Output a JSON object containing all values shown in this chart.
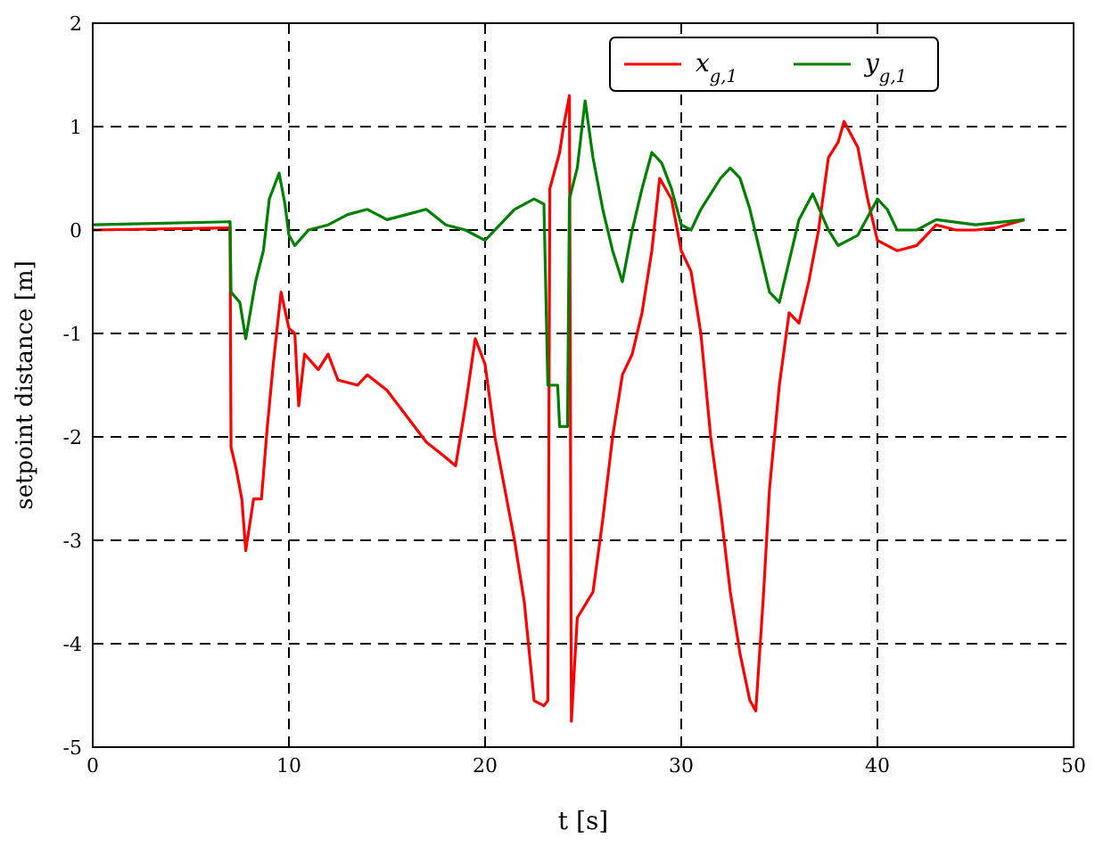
{
  "chart_data": {
    "type": "line",
    "xlabel": "t [s]",
    "ylabel": "setpoint distance [m]",
    "xlim": [
      0,
      50
    ],
    "ylim": [
      -5,
      2
    ],
    "xticks": [
      0,
      10,
      20,
      30,
      40,
      50
    ],
    "yticks": [
      -5,
      -4,
      -3,
      -2,
      -1,
      0,
      1,
      2
    ],
    "grid": true,
    "legend": "top right",
    "line_style": "solid",
    "marker": "none",
    "series": [
      {
        "name": "x$_{g,1}$",
        "color": "#ff0000",
        "x": [
          0,
          7,
          7.05,
          7.3,
          7.6,
          7.8,
          8.2,
          8.6,
          8.9,
          9.2,
          9.6,
          10,
          10.3,
          10.5,
          10.8,
          11.5,
          12,
          12.5,
          13.5,
          14,
          15,
          16,
          17,
          18,
          18.5,
          19,
          19.5,
          20,
          20.5,
          21,
          21.5,
          22,
          22.5,
          23,
          23.2,
          23.3,
          23.8,
          24,
          24.3,
          24.4,
          24.7,
          25.5,
          26,
          26.5,
          27,
          27.5,
          28,
          28.5,
          28.9,
          29.5,
          30,
          30.5,
          31,
          31.5,
          32,
          32.5,
          33,
          33.5,
          33.8,
          34.2,
          34.5,
          35,
          35.5,
          36,
          36.5,
          37,
          37.5,
          38,
          38.3,
          39,
          39.5,
          40,
          41,
          42,
          43,
          44,
          45,
          46,
          47.5
        ],
        "values": [
          0,
          0.02,
          -2.1,
          -2.3,
          -2.6,
          -3.1,
          -2.6,
          -2.6,
          -1.9,
          -1.3,
          -0.6,
          -0.95,
          -1,
          -1.7,
          -1.2,
          -1.35,
          -1.2,
          -1.45,
          -1.5,
          -1.4,
          -1.55,
          -1.8,
          -2.05,
          -2.2,
          -2.28,
          -1.7,
          -1.05,
          -1.3,
          -2,
          -2.5,
          -3,
          -3.6,
          -4.55,
          -4.6,
          -4.55,
          0.4,
          0.75,
          1,
          1.3,
          -4.75,
          -3.75,
          -3.5,
          -2.8,
          -2,
          -1.4,
          -1.2,
          -0.8,
          -0.2,
          0.5,
          0.3,
          -0.2,
          -0.4,
          -1,
          -2,
          -2.7,
          -3.5,
          -4.1,
          -4.55,
          -4.65,
          -3.5,
          -2.5,
          -1.5,
          -0.8,
          -0.9,
          -0.5,
          0,
          0.7,
          0.85,
          1.05,
          0.8,
          0.3,
          -0.1,
          -0.2,
          -0.15,
          0.05,
          0,
          0,
          0.02,
          0.1
        ]
      },
      {
        "name": "y$_{g,1}$",
        "color": "#008000",
        "x": [
          0,
          7,
          7.05,
          7.5,
          7.8,
          8.3,
          8.7,
          9,
          9.5,
          9.8,
          10,
          10.3,
          11,
          12,
          13,
          14,
          15,
          16,
          17,
          18,
          19,
          20,
          20.5,
          21.5,
          22.5,
          23,
          23.2,
          23.7,
          23.8,
          24.2,
          24.3,
          24.7,
          25.1,
          25.5,
          26,
          26.5,
          27,
          27.5,
          28,
          28.5,
          29,
          29.5,
          30,
          30.5,
          31,
          32,
          32.5,
          33,
          33.5,
          34,
          34.5,
          35,
          35.5,
          36,
          36.7,
          37.5,
          38,
          39,
          40,
          40.5,
          41,
          42,
          43,
          45,
          47.5
        ],
        "values": [
          0.05,
          0.08,
          -0.6,
          -0.7,
          -1.05,
          -0.5,
          -0.2,
          0.3,
          0.55,
          0.25,
          -0.05,
          -0.15,
          0,
          0.05,
          0.15,
          0.2,
          0.1,
          0.15,
          0.2,
          0.05,
          0,
          -0.1,
          0,
          0.2,
          0.3,
          0.25,
          -1.5,
          -1.5,
          -1.9,
          -1.9,
          0.3,
          0.6,
          1.25,
          0.7,
          0.2,
          -0.2,
          -0.5,
          0,
          0.4,
          0.75,
          0.65,
          0.4,
          0.05,
          0,
          0.2,
          0.5,
          0.6,
          0.5,
          0.2,
          -0.2,
          -0.6,
          -0.7,
          -0.3,
          0.1,
          0.35,
          0,
          -0.15,
          -0.05,
          0.3,
          0.2,
          0,
          0,
          0.1,
          0.05,
          0.1
        ]
      }
    ]
  }
}
